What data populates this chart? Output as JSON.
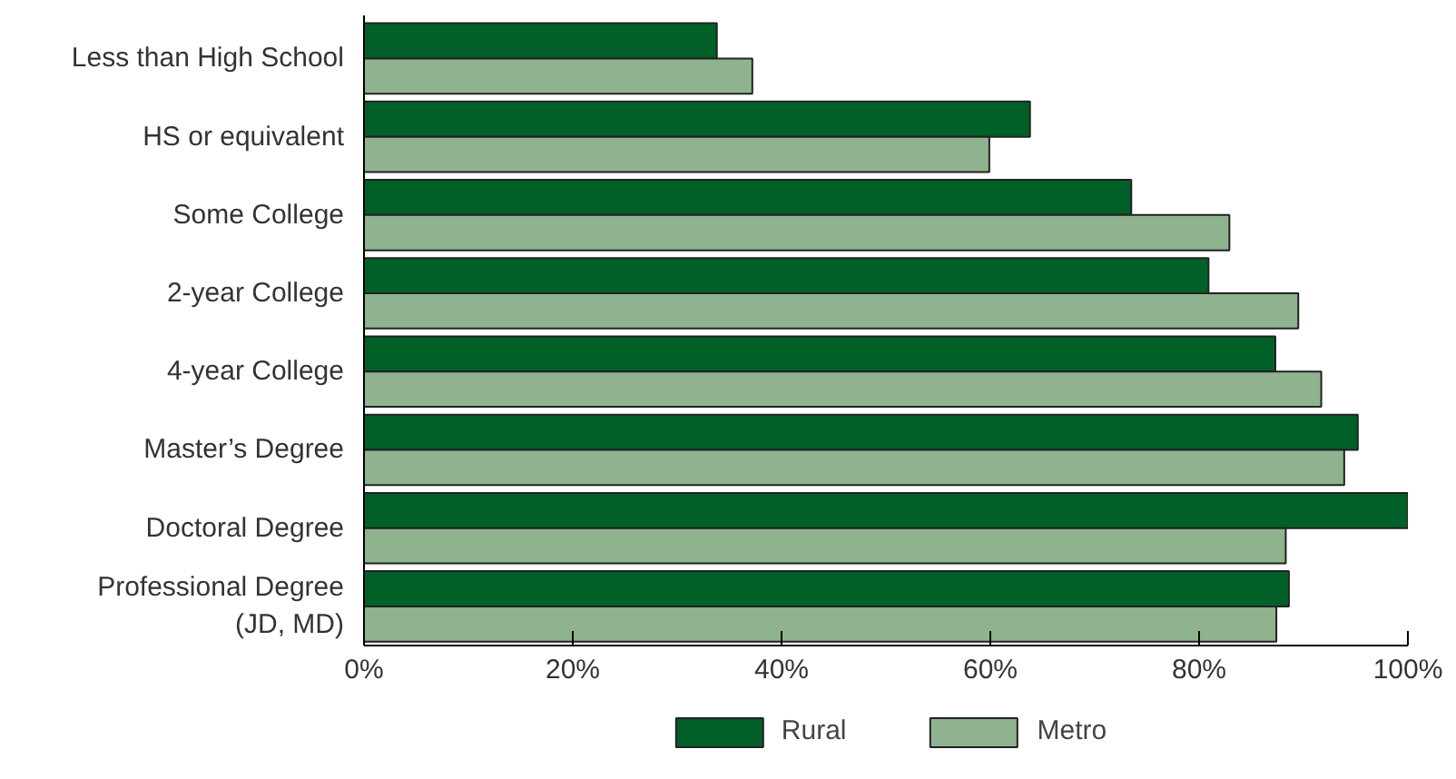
{
  "chart_data": {
    "type": "bar",
    "orientation": "horizontal",
    "categories": [
      "Less than High School",
      "HS or equivalent",
      "Some College",
      "2-year College",
      "4-year College",
      "Master’s Degree",
      "Doctoral Degree",
      "Professional Degree\n(JD, MD)"
    ],
    "series": [
      {
        "name": "Rural",
        "color": "#006028",
        "values": [
          33.8,
          63.8,
          73.5,
          80.9,
          87.3,
          95.2,
          100,
          88.6
        ]
      },
      {
        "name": "Metro",
        "color": "#8fb28f",
        "values": [
          37.2,
          59.9,
          82.9,
          89.5,
          91.7,
          93.9,
          88.3,
          87.4
        ]
      }
    ],
    "xlim": [
      0,
      100
    ],
    "xticks": [
      {
        "value": 0,
        "label": "0%"
      },
      {
        "value": 20,
        "label": "20%"
      },
      {
        "value": 40,
        "label": "40%"
      },
      {
        "value": 60,
        "label": "60%"
      },
      {
        "value": 80,
        "label": "80%"
      },
      {
        "value": 100,
        "label": "100%"
      }
    ],
    "grid": false,
    "legend": "bottom"
  }
}
